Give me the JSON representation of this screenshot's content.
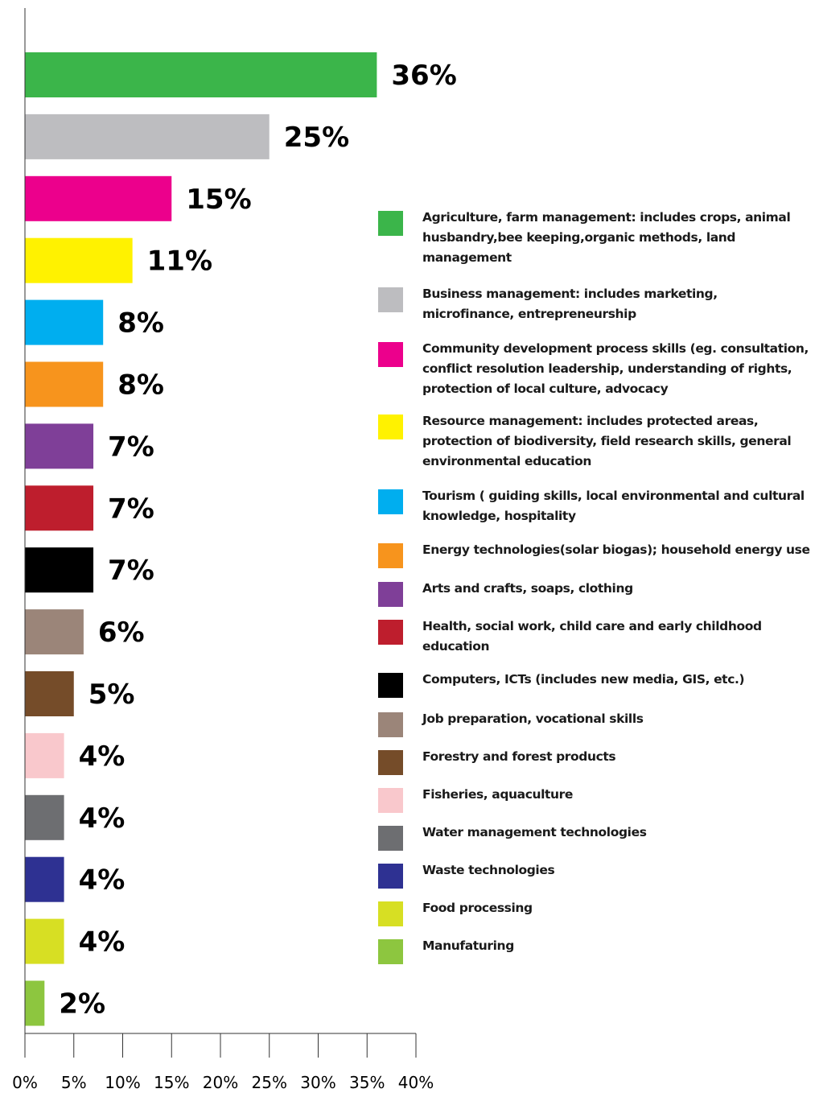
{
  "chart_data": {
    "type": "bar",
    "orientation": "horizontal",
    "categories": [
      "Agriculture, farm management: includes crops, animal husbandry,bee keeping,organic methods,  land management",
      "Business management: includes marketing, microfinance, entrepreneurship",
      "Community development process skills (eg. consultation, conflict resolution leadership, understanding of rights, protection of local culture, advocacy",
      "Resource management: includes protected areas, protection of biodiversity, field research skills, general environmental education",
      "Tourism ( guiding skills, local environmental and cultural knowledge, hospitality",
      "Energy technologies(solar biogas); household energy use",
      "Arts and crafts, soaps, clothing",
      "Health, social work, child care and early childhood education",
      "Computers, ICTs (includes  new media, GIS, etc.)",
      "Job preparation, vocational skills",
      "Forestry and forest products",
      "Fisheries, aquaculture",
      "Water management technologies",
      "Waste technologies",
      "Food processing",
      "Manufaturing"
    ],
    "values": [
      36,
      25,
      15,
      11,
      8,
      8,
      7,
      7,
      7,
      6,
      5,
      4,
      4,
      4,
      4,
      2
    ],
    "value_labels": [
      "36%",
      "25%",
      "15%",
      "11%",
      "8%",
      "8%",
      "7%",
      "7%",
      "7%",
      "6%",
      "5%",
      "4%",
      "4%",
      "4%",
      "4%",
      "2%"
    ],
    "colors": [
      "#3bb54a",
      "#bdbdc0",
      "#ec008c",
      "#fff200",
      "#00aeef",
      "#f7941d",
      "#7f3f98",
      "#be1e2d",
      "#000000",
      "#9b8579",
      "#754c29",
      "#f9c8cc",
      "#6d6e71",
      "#2e3192",
      "#d7df23",
      "#8dc63f"
    ],
    "xlim": [
      0,
      40
    ],
    "xticks": [
      0,
      5,
      10,
      15,
      20,
      25,
      30,
      35,
      40
    ],
    "xtick_labels": [
      "0%",
      "5%",
      "10%",
      "15%",
      "20%",
      "25%",
      "30%",
      "35%",
      "40%"
    ],
    "legend_position": "right",
    "grid": false
  }
}
